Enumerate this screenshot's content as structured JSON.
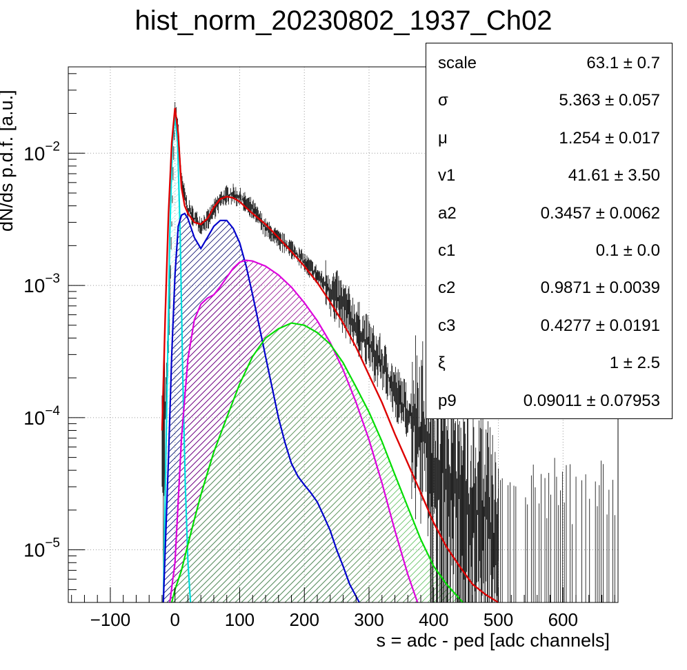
{
  "title": "hist_norm_20230802_1937_Ch02",
  "chart_data": {
    "type": "line",
    "title": "hist_norm_20230802_1937_Ch02",
    "xlabel": "s = adc - ped [adc channels]",
    "ylabel": "dN/ds p.d.f. [a.u.]",
    "xlim": [
      -165,
      685
    ],
    "ylim": [
      4e-06,
      0.045
    ],
    "y_scale": "log",
    "grid": true,
    "x_ticks": [
      "−100",
      "0",
      "100",
      "200",
      "300",
      "400",
      "500",
      "600"
    ],
    "x_tick_values": [
      -100,
      0,
      100,
      200,
      300,
      400,
      500,
      600
    ],
    "y_ticks": [
      {
        "base": "10",
        "exp": "−2",
        "value": 0.01
      },
      {
        "base": "10",
        "exp": "−3",
        "value": 0.001
      },
      {
        "base": "10",
        "exp": "−4",
        "value": 0.0001
      },
      {
        "base": "10",
        "exp": "−5",
        "value": 1e-05
      }
    ],
    "series": [
      {
        "role": "data histogram",
        "color": "#000000",
        "x": [
          -20,
          -10,
          0,
          5,
          10,
          20,
          30,
          40,
          50,
          60,
          70,
          80,
          90,
          100,
          120,
          140,
          160,
          180,
          200,
          220,
          240,
          260,
          280,
          300,
          320,
          340,
          360,
          380,
          400,
          420,
          440,
          460,
          480,
          500
        ],
        "y": [
          3e-05,
          0.0004,
          0.022,
          0.015,
          0.006,
          0.0038,
          0.0032,
          0.0029,
          0.0031,
          0.0037,
          0.0044,
          0.0048,
          0.0049,
          0.0046,
          0.0038,
          0.0027,
          0.0022,
          0.0019,
          0.0015,
          0.0012,
          0.0009,
          0.0007,
          0.0005,
          0.00035,
          0.00025,
          0.00016,
          0.00011,
          8e-05,
          5e-05,
          4e-05,
          3e-05,
          2e-05,
          2e-05,
          1e-05
        ]
      },
      {
        "role": "total fit",
        "color": "#dd0000",
        "x": [
          -20,
          -15,
          -10,
          -5,
          0,
          5,
          10,
          15,
          20,
          30,
          40,
          50,
          60,
          70,
          80,
          90,
          100,
          120,
          140,
          160,
          180,
          200,
          220,
          240,
          260,
          280,
          300,
          320,
          340,
          360,
          380,
          400,
          420,
          440,
          460,
          480,
          500
        ],
        "y": [
          8e-05,
          0.0006,
          0.0035,
          0.012,
          0.022,
          0.014,
          0.0055,
          0.004,
          0.0035,
          0.003,
          0.0029,
          0.0032,
          0.0039,
          0.0045,
          0.0047,
          0.0046,
          0.0043,
          0.0035,
          0.0029,
          0.0023,
          0.0018,
          0.0014,
          0.00105,
          0.00075,
          0.00052,
          0.00034,
          0.00021,
          0.00013,
          7.5e-05,
          4.5e-05,
          2.7e-05,
          1.6e-05,
          1.05e-05,
          7.5e-06,
          5.5e-06,
          4.6e-06,
          4e-06
        ]
      },
      {
        "role": "pedestal component",
        "color": "#00dddd",
        "fill": "#aaf4f4",
        "x": [
          -18,
          -12,
          -8,
          -4,
          0,
          4,
          8,
          12,
          16,
          20,
          24
        ],
        "y": [
          4e-06,
          0.0002,
          0.0025,
          0.012,
          0.019,
          0.012,
          0.0025,
          0.0002,
          3e-05,
          8e-06,
          4e-06
        ]
      },
      {
        "role": "1 p.e. component",
        "color": "#0000cc",
        "fill": "#000066",
        "x": [
          -18,
          -10,
          -5,
          0,
          5,
          10,
          15,
          20,
          30,
          40,
          50,
          60,
          70,
          80,
          90,
          100,
          110,
          120,
          130,
          140,
          150,
          160,
          170,
          180,
          190,
          200,
          210,
          220,
          230,
          240,
          250,
          260,
          270,
          285
        ],
        "y": [
          4e-06,
          5e-05,
          0.0003,
          0.0012,
          0.0028,
          0.0034,
          0.0035,
          0.0032,
          0.0023,
          0.0019,
          0.0023,
          0.0028,
          0.0031,
          0.0031,
          0.0027,
          0.0021,
          0.0014,
          0.00085,
          0.0005,
          0.00029,
          0.00017,
          0.0001,
          6.5e-05,
          4.5e-05,
          3.6e-05,
          3.1e-05,
          2.7e-05,
          2.3e-05,
          1.8e-05,
          1.4e-05,
          1e-05,
          7.5e-06,
          5.5e-06,
          4e-06
        ]
      },
      {
        "role": "2 p.e. component",
        "color": "#dd00dd",
        "fill": "#880088",
        "x": [
          -8,
          0,
          10,
          20,
          30,
          40,
          50,
          60,
          70,
          80,
          90,
          100,
          110,
          120,
          140,
          160,
          180,
          200,
          220,
          240,
          260,
          280,
          300,
          320,
          340,
          360,
          375
        ],
        "y": [
          4e-06,
          8e-06,
          7e-05,
          0.00028,
          0.00055,
          0.00072,
          0.0008,
          0.00085,
          0.00098,
          0.00115,
          0.00135,
          0.0015,
          0.00155,
          0.00153,
          0.0014,
          0.0012,
          0.00097,
          0.00074,
          0.00054,
          0.00037,
          0.00023,
          0.00013,
          6.8e-05,
          3.2e-05,
          1.4e-05,
          6.5e-06,
          4e-06
        ]
      },
      {
        "role": "3 p.e. component",
        "color": "#00dd00",
        "fill": "#55bb55",
        "x": [
          -5,
          0,
          10,
          20,
          30,
          40,
          50,
          60,
          80,
          100,
          120,
          140,
          160,
          180,
          200,
          220,
          240,
          260,
          280,
          300,
          320,
          340,
          360,
          380,
          400,
          420,
          445
        ],
        "y": [
          4e-06,
          5e-06,
          7e-06,
          1.1e-05,
          1.7e-05,
          2.6e-05,
          3.8e-05,
          5.5e-05,
          0.0001,
          0.00018,
          0.00029,
          0.0004,
          0.00047,
          0.00052,
          0.0005,
          0.00044,
          0.00036,
          0.00026,
          0.00017,
          0.00011,
          6.6e-05,
          3.7e-05,
          2.1e-05,
          1.2e-05,
          7.5e-06,
          5.5e-06,
          4e-06
        ]
      }
    ]
  },
  "stats": [
    {
      "name": "scale",
      "value": "63.1",
      "error": "0.7"
    },
    {
      "name": "σ",
      "value": "5.363",
      "error": "0.057"
    },
    {
      "name": "μ",
      "value": "1.254",
      "error": "0.017"
    },
    {
      "name": "v1",
      "value": "41.61",
      "error": "3.50"
    },
    {
      "name": "a2",
      "value": "0.3457",
      "error": "0.0062"
    },
    {
      "name": "c1",
      "value": "0.1",
      "error": "0.0"
    },
    {
      "name": "c2",
      "value": "0.9871",
      "error": "0.0039"
    },
    {
      "name": "c3",
      "value": "0.4277",
      "error": "0.0191"
    },
    {
      "name": "ξ",
      "value": "1",
      "error": "2.5"
    },
    {
      "name": "p9",
      "value": "0.09011",
      "error": "0.07953"
    }
  ],
  "pm_symbol": "±"
}
